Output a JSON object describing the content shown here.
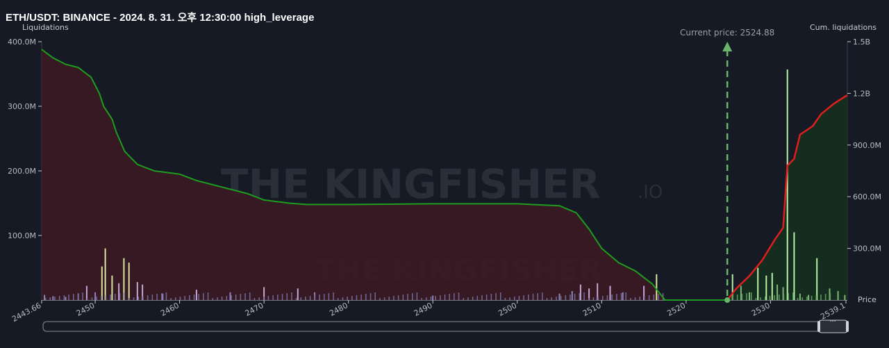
{
  "header": {
    "title": "ETH/USDT: BINANCE - 2024. 8. 31. 오후 12:30:00 high_leverage"
  },
  "axes": {
    "left_name": "Liquidations",
    "right_name": "Cum. liquidations",
    "x_name": "Price",
    "current_price_label": "Current price: 2524.88"
  },
  "watermark": {
    "brand": "THE KINGFISHER",
    "suffix": ".IO"
  },
  "colors": {
    "background": "#161a25",
    "short_cum_line": "#1f9d1f",
    "long_cum_line": "#e01e1e",
    "short_fill": "#3a1a22",
    "long_fill": "#14301f",
    "current_price_marker": "#6ab56a"
  },
  "chart_data": {
    "type": "bar+area",
    "title": "ETH/USDT: BINANCE - 2024. 8. 31. 오후 12:30:00 high_leverage",
    "xlabel": "Price",
    "ylabel_left": "Liquidations",
    "ylabel_right": "Cum. liquidations",
    "xlim": [
      2443.66,
      2539.1
    ],
    "ylim_left": [
      0,
      400000000
    ],
    "ylim_right": [
      0,
      1500000000
    ],
    "x_ticks": [
      "2443.66",
      "2450",
      "2460",
      "2470",
      "2480",
      "2490",
      "2500",
      "2510",
      "2520",
      "2530",
      "2539.1"
    ],
    "y_left_ticks": [
      "400.0M",
      "300.0M",
      "200.0M",
      "100.0M"
    ],
    "y_right_ticks": [
      "1.5B",
      "1.2B",
      "900.0M",
      "600.0M",
      "300.0M"
    ],
    "current_price": 2524.88,
    "series": [
      {
        "name": "cumulative_below_price",
        "axis": "left",
        "points": [
          [
            2443.66,
            388000000
          ],
          [
            2445.0,
            375000000
          ],
          [
            2446.5,
            365000000
          ],
          [
            2448.0,
            360000000
          ],
          [
            2449.5,
            345000000
          ],
          [
            2450.5,
            320000000
          ],
          [
            2451.0,
            300000000
          ],
          [
            2452.0,
            280000000
          ],
          [
            2452.5,
            260000000
          ],
          [
            2453.5,
            230000000
          ],
          [
            2455.0,
            210000000
          ],
          [
            2457.0,
            200000000
          ],
          [
            2460.0,
            195000000
          ],
          [
            2462.0,
            185000000
          ],
          [
            2465.0,
            175000000
          ],
          [
            2468.0,
            165000000
          ],
          [
            2470.0,
            155000000
          ],
          [
            2473.0,
            150000000
          ],
          [
            2475.0,
            148000000
          ],
          [
            2480.0,
            148000000
          ],
          [
            2490.0,
            149000000
          ],
          [
            2500.0,
            149000000
          ],
          [
            2505.0,
            146000000
          ],
          [
            2507.0,
            135000000
          ],
          [
            2508.5,
            110000000
          ],
          [
            2510.0,
            80000000
          ],
          [
            2512.0,
            58000000
          ],
          [
            2514.0,
            45000000
          ],
          [
            2516.0,
            25000000
          ],
          [
            2517.5,
            0
          ],
          [
            2524.88,
            0
          ]
        ]
      },
      {
        "name": "cumulative_above_price",
        "axis": "right",
        "points": [
          [
            2524.88,
            0
          ],
          [
            2526.0,
            70000000
          ],
          [
            2527.5,
            140000000
          ],
          [
            2529.0,
            230000000
          ],
          [
            2530.5,
            350000000
          ],
          [
            2531.5,
            420000000
          ],
          [
            2532.0,
            780000000
          ],
          [
            2532.8,
            820000000
          ],
          [
            2533.5,
            960000000
          ],
          [
            2535.0,
            1010000000
          ],
          [
            2536.0,
            1080000000
          ],
          [
            2537.5,
            1140000000
          ],
          [
            2539.1,
            1190000000
          ]
        ]
      },
      {
        "name": "liquidations_per_price_below",
        "axis": "left",
        "bars": [
          [
            2444.0,
            8000000
          ],
          [
            2445.0,
            6000000
          ],
          [
            2446.5,
            5000000
          ],
          [
            2448.0,
            10000000
          ],
          [
            2449.0,
            22000000
          ],
          [
            2450.0,
            12000000
          ],
          [
            2450.8,
            52000000
          ],
          [
            2451.2,
            80000000
          ],
          [
            2452.0,
            38000000
          ],
          [
            2452.8,
            26000000
          ],
          [
            2453.4,
            65000000
          ],
          [
            2454.0,
            58000000
          ],
          [
            2455.0,
            28000000
          ],
          [
            2455.6,
            24000000
          ],
          [
            2458.0,
            10000000
          ],
          [
            2462.0,
            16000000
          ],
          [
            2466.0,
            12000000
          ],
          [
            2470.0,
            20000000
          ],
          [
            2474.0,
            18000000
          ],
          [
            2476.0,
            12000000
          ],
          [
            2490.0,
            7000000
          ],
          [
            2505.0,
            10000000
          ],
          [
            2506.5,
            14000000
          ],
          [
            2507.5,
            24000000
          ],
          [
            2508.5,
            18000000
          ],
          [
            2509.5,
            26000000
          ],
          [
            2511.0,
            22000000
          ],
          [
            2512.5,
            12000000
          ],
          [
            2515.0,
            22000000
          ],
          [
            2516.5,
            40000000
          ]
        ]
      },
      {
        "name": "liquidations_per_price_above",
        "axis": "left",
        "bars": [
          [
            2525.5,
            40000000
          ],
          [
            2526.5,
            22000000
          ],
          [
            2527.5,
            12000000
          ],
          [
            2528.5,
            50000000
          ],
          [
            2529.5,
            38000000
          ],
          [
            2530.2,
            42000000
          ],
          [
            2530.8,
            24000000
          ],
          [
            2531.5,
            20000000
          ],
          [
            2532.0,
            357000000
          ],
          [
            2532.8,
            105000000
          ],
          [
            2533.5,
            10000000
          ],
          [
            2534.5,
            8000000
          ],
          [
            2535.5,
            65000000
          ],
          [
            2537.0,
            18000000
          ],
          [
            2538.0,
            14000000
          ],
          [
            2538.8,
            8000000
          ]
        ]
      }
    ]
  }
}
